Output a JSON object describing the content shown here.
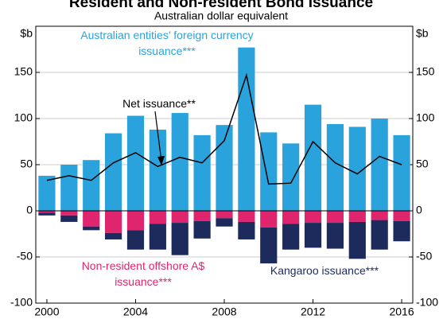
{
  "chart_data": {
    "type": "bar",
    "title": "Resident and Non-resident Bond Issuance",
    "subtitle": "Australian dollar equivalent",
    "y_label": "$b",
    "categories": [
      "2000",
      null,
      null,
      null,
      "2004",
      null,
      null,
      null,
      "2008",
      null,
      null,
      null,
      "2012",
      null,
      null,
      null,
      "2016"
    ],
    "series": [
      {
        "name": "Australian entities’ foreign currency issuance***",
        "color": "#2aa3dc",
        "values": [
          38,
          50,
          55,
          84,
          103,
          88,
          106,
          82,
          93,
          177,
          85,
          73,
          115,
          94,
          91,
          100,
          82
        ]
      },
      {
        "name": "Non-resident offshore A$ issuance***",
        "color": "#e0256f",
        "values": [
          -2,
          -5,
          -17,
          -24,
          -21,
          -14,
          -13,
          -11,
          -8,
          -12,
          -18,
          -14,
          -13,
          -13,
          -12,
          -10,
          -11
        ]
      },
      {
        "name": "Kangaroo issuance***",
        "color": "#1c2a5c",
        "values": [
          -3,
          -7,
          -4,
          -7,
          -21,
          -28,
          -35,
          -19,
          -9,
          -19,
          -39,
          -28,
          -27,
          -28,
          -40,
          -32,
          -22
        ]
      },
      {
        "name": "Net issuance**",
        "color": "#000000",
        "type": "line",
        "values": [
          33,
          38,
          33,
          52,
          63,
          48,
          58,
          52,
          76,
          147,
          29,
          30,
          75,
          52,
          40,
          59,
          50
        ]
      }
    ],
    "ylim": [
      -100,
      200
    ],
    "yticks": [
      -100,
      -50,
      0,
      50,
      100,
      150
    ],
    "grid": true
  }
}
